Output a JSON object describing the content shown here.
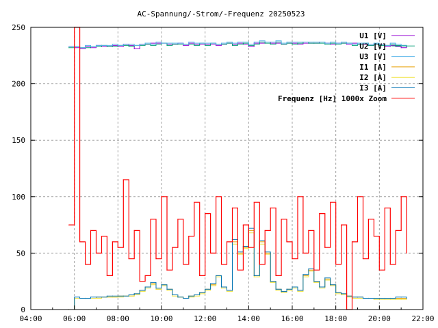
{
  "chart_data": {
    "type": "line",
    "title": "AC-Spannung/-Strom/-Frequenz 20250523",
    "xlabel": "",
    "ylabel": "",
    "xlim": [
      "04:00",
      "22:00"
    ],
    "ylim": [
      0,
      250
    ],
    "x_ticks": [
      "04:00",
      "06:00",
      "08:00",
      "10:00",
      "12:00",
      "14:00",
      "16:00",
      "18:00",
      "20:00",
      "22:00"
    ],
    "y_ticks": [
      "0",
      "50",
      "100",
      "150",
      "200",
      "250"
    ],
    "grid": true,
    "legend_position": "top-right",
    "x": [
      "05:45",
      "06:00",
      "06:15",
      "06:30",
      "06:45",
      "07:00",
      "07:15",
      "07:30",
      "07:45",
      "08:00",
      "08:15",
      "08:30",
      "08:45",
      "09:00",
      "09:15",
      "09:30",
      "09:45",
      "10:00",
      "10:15",
      "10:30",
      "10:45",
      "11:00",
      "11:15",
      "11:30",
      "11:45",
      "12:00",
      "12:15",
      "12:30",
      "12:45",
      "13:00",
      "13:15",
      "13:30",
      "13:45",
      "14:00",
      "14:15",
      "14:30",
      "14:45",
      "15:00",
      "15:15",
      "15:30",
      "15:45",
      "16:00",
      "16:15",
      "16:30",
      "16:45",
      "17:00",
      "17:15",
      "17:30",
      "17:45",
      "18:00",
      "18:15",
      "18:30",
      "18:45",
      "19:00",
      "19:15",
      "19:30",
      "19:45",
      "20:00",
      "20:15",
      "20:30",
      "20:45",
      "21:00",
      "21:15"
    ],
    "series": [
      {
        "name": "U1 [V]",
        "color": "#9400d3",
        "values": [
          233,
          232,
          231,
          233,
          232,
          234,
          233,
          233,
          234,
          233,
          235,
          234,
          231,
          235,
          235,
          236,
          236,
          236,
          235,
          235,
          236,
          234,
          236,
          235,
          235,
          235,
          235,
          234,
          235,
          236,
          235,
          236,
          235,
          233,
          236,
          236,
          237,
          236,
          236,
          235,
          236,
          236,
          235,
          236,
          236,
          236,
          237,
          236,
          235,
          236,
          236,
          235,
          236,
          235,
          235,
          234,
          235,
          235,
          233,
          234,
          233,
          232,
          233
        ]
      },
      {
        "name": "U2 [V]",
        "color": "#009e73",
        "values": [
          232,
          233,
          232,
          232,
          233,
          233,
          234,
          233,
          233,
          234,
          234,
          233,
          234,
          234,
          235,
          234,
          235,
          236,
          234,
          235,
          235,
          235,
          235,
          234,
          236,
          234,
          236,
          235,
          235,
          236,
          234,
          235,
          236,
          234,
          235,
          237,
          236,
          235,
          237,
          235,
          236,
          235,
          236,
          237,
          236,
          236,
          236,
          235,
          236,
          235,
          236,
          236,
          234,
          235,
          236,
          234,
          235,
          234,
          234,
          235,
          234,
          234,
          233
        ]
      },
      {
        "name": "U3 [V]",
        "color": "#56b4e9",
        "values": [
          233,
          233,
          232,
          234,
          233,
          234,
          234,
          234,
          235,
          234,
          235,
          235,
          234,
          235,
          236,
          235,
          237,
          236,
          236,
          236,
          236,
          235,
          237,
          236,
          236,
          236,
          236,
          235,
          236,
          237,
          236,
          237,
          237,
          235,
          237,
          238,
          237,
          237,
          238,
          236,
          237,
          237,
          237,
          237,
          237,
          237,
          237,
          236,
          237,
          236,
          237,
          236,
          235,
          236,
          236,
          235,
          236,
          235,
          234,
          236,
          235,
          234,
          234
        ]
      },
      {
        "name": "I1 [A]",
        "color": "#e69f00",
        "values": [
          0,
          10,
          10,
          10,
          10,
          11,
          11,
          11,
          11,
          12,
          12,
          12,
          14,
          17,
          20,
          23,
          18,
          22,
          18,
          13,
          11,
          10,
          12,
          13,
          15,
          18,
          22,
          30,
          20,
          17,
          60,
          50,
          55,
          70,
          30,
          60,
          50,
          25,
          18,
          16,
          18,
          20,
          17,
          30,
          35,
          25,
          20,
          27,
          22,
          15,
          14,
          12,
          11,
          11,
          10,
          10,
          10,
          10,
          10,
          10,
          10,
          10,
          10
        ]
      },
      {
        "name": "I2 [A]",
        "color": "#f0e442",
        "values": [
          0,
          10,
          10,
          10,
          10,
          10,
          11,
          11,
          11,
          11,
          12,
          12,
          13,
          16,
          19,
          22,
          18,
          21,
          17,
          12,
          11,
          10,
          11,
          12,
          14,
          17,
          21,
          29,
          19,
          16,
          58,
          49,
          54,
          68,
          29,
          58,
          49,
          24,
          17,
          15,
          17,
          19,
          16,
          29,
          34,
          24,
          19,
          26,
          21,
          14,
          13,
          11,
          10,
          10,
          10,
          10,
          9,
          9,
          9,
          9,
          9,
          9,
          9
        ]
      },
      {
        "name": "I3 [A]",
        "color": "#0072b2",
        "values": [
          0,
          11,
          10,
          10,
          11,
          11,
          11,
          12,
          12,
          12,
          12,
          13,
          14,
          17,
          20,
          24,
          19,
          22,
          18,
          13,
          11,
          10,
          12,
          13,
          15,
          18,
          23,
          30,
          20,
          17,
          62,
          51,
          56,
          72,
          30,
          61,
          51,
          25,
          18,
          16,
          18,
          20,
          17,
          31,
          36,
          25,
          20,
          28,
          22,
          15,
          14,
          12,
          11,
          11,
          10,
          10,
          10,
          10,
          10,
          10,
          11,
          11,
          10
        ]
      },
      {
        "name": "Frequenz [Hz] 1000x Zoom",
        "color": "#ff0000",
        "values": [
          75,
          250,
          60,
          40,
          70,
          50,
          65,
          30,
          60,
          55,
          115,
          45,
          70,
          25,
          30,
          80,
          45,
          100,
          35,
          55,
          80,
          40,
          65,
          95,
          30,
          85,
          50,
          100,
          40,
          60,
          90,
          35,
          75,
          55,
          95,
          40,
          70,
          90,
          30,
          80,
          60,
          45,
          100,
          50,
          70,
          35,
          85,
          55,
          95,
          40,
          75,
          0,
          60,
          100,
          45,
          80,
          65,
          35,
          90,
          40,
          70,
          100,
          50
        ]
      }
    ]
  }
}
